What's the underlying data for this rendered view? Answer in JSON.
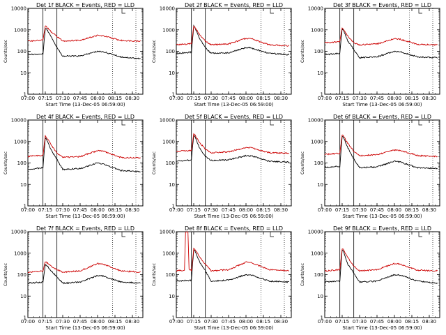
{
  "figure": {
    "start_time_label": "Start Time (13-Dec-05 06:59:00)",
    "ylabel": "Counts/sec",
    "xtick_labels": [
      "07:00",
      "07:15",
      "07:30",
      "07:45",
      "08:00",
      "08:15",
      "08:30"
    ],
    "ytick_labels": [
      "1",
      "10",
      "100",
      "1000",
      "10000"
    ],
    "colors": {
      "events": "#000000",
      "lld": "#cc0000"
    }
  },
  "chart_data": [
    {
      "type": "line",
      "title": "Det 1f  BLACK = Events, RED = LLD",
      "xlabel": "Start Time (13-Dec-05 06:59:00)",
      "ylabel": "Counts/sec",
      "yscale": "log",
      "ylim": [
        1,
        10000
      ],
      "xlim": [
        "07:00",
        "08:39"
      ],
      "series": [
        {
          "name": "Events",
          "color": "#000000",
          "x": [
            "07:00",
            "07:13",
            "07:15",
            "07:16",
            "07:20",
            "07:25",
            "07:30",
            "07:45",
            "08:00",
            "08:05",
            "08:20",
            "08:37"
          ],
          "y": [
            70,
            75,
            1200,
            1100,
            500,
            150,
            60,
            60,
            100,
            95,
            55,
            45
          ]
        },
        {
          "name": "LLD",
          "color": "#cc0000",
          "x": [
            "07:00",
            "07:13",
            "07:15",
            "07:16",
            "07:20",
            "07:25",
            "07:30",
            "07:45",
            "08:00",
            "08:05",
            "08:20",
            "08:37"
          ],
          "y": [
            300,
            330,
            1500,
            1400,
            800,
            500,
            300,
            330,
            550,
            520,
            320,
            300
          ]
        }
      ]
    },
    {
      "type": "line",
      "title": "Det 2f  BLACK = Events, RED = LLD",
      "xlabel": "Start Time (13-Dec-05 06:59:00)",
      "ylabel": "Counts/sec",
      "yscale": "log",
      "ylim": [
        1,
        10000
      ],
      "xlim": [
        "07:00",
        "08:39"
      ],
      "series": [
        {
          "name": "Events",
          "color": "#000000",
          "x": [
            "07:00",
            "07:13",
            "07:15",
            "07:16",
            "07:20",
            "07:25",
            "07:30",
            "07:45",
            "08:00",
            "08:05",
            "08:20",
            "08:37"
          ],
          "y": [
            80,
            90,
            1500,
            1300,
            400,
            150,
            80,
            85,
            150,
            140,
            80,
            70
          ]
        },
        {
          "name": "LLD",
          "color": "#cc0000",
          "x": [
            "07:00",
            "07:13",
            "07:15",
            "07:16",
            "07:20",
            "07:25",
            "07:30",
            "07:45",
            "08:00",
            "08:05",
            "08:20",
            "08:37"
          ],
          "y": [
            200,
            230,
            1400,
            1300,
            600,
            300,
            200,
            220,
            400,
            380,
            200,
            180
          ]
        }
      ]
    },
    {
      "type": "line",
      "title": "Det 3f  BLACK = Events, RED = LLD",
      "xlabel": "Start Time (13-Dec-05 06:59:00)",
      "ylabel": "Counts/sec",
      "yscale": "log",
      "ylim": [
        1,
        10000
      ],
      "xlim": [
        "07:00",
        "08:39"
      ],
      "series": [
        {
          "name": "Events",
          "color": "#000000",
          "x": [
            "07:00",
            "07:13",
            "07:15",
            "07:16",
            "07:20",
            "07:25",
            "07:30",
            "07:45",
            "08:00",
            "08:05",
            "08:20",
            "08:37"
          ],
          "y": [
            70,
            80,
            1100,
            1000,
            300,
            120,
            50,
            55,
            100,
            95,
            55,
            50
          ]
        },
        {
          "name": "LLD",
          "color": "#cc0000",
          "x": [
            "07:00",
            "07:13",
            "07:15",
            "07:16",
            "07:20",
            "07:25",
            "07:30",
            "07:45",
            "08:00",
            "08:05",
            "08:20",
            "08:37"
          ],
          "y": [
            250,
            280,
            1200,
            1100,
            500,
            250,
            200,
            220,
            380,
            360,
            210,
            200
          ]
        }
      ]
    },
    {
      "type": "line",
      "title": "Det 4f  BLACK = Events, RED = LLD",
      "xlabel": "Start Time (13-Dec-05 06:59:00)",
      "ylabel": "Counts/sec",
      "yscale": "log",
      "ylim": [
        1,
        10000
      ],
      "xlim": [
        "07:00",
        "08:39"
      ],
      "series": [
        {
          "name": "Events",
          "color": "#000000",
          "x": [
            "07:00",
            "07:13",
            "07:15",
            "07:16",
            "07:20",
            "07:25",
            "07:30",
            "07:45",
            "08:00",
            "08:05",
            "08:20",
            "08:37"
          ],
          "y": [
            50,
            60,
            1500,
            1300,
            400,
            150,
            50,
            55,
            100,
            90,
            45,
            40
          ]
        },
        {
          "name": "LLD",
          "color": "#cc0000",
          "x": [
            "07:00",
            "07:13",
            "07:15",
            "07:16",
            "07:20",
            "07:25",
            "07:30",
            "07:45",
            "08:00",
            "08:05",
            "08:20",
            "08:37"
          ],
          "y": [
            200,
            230,
            1800,
            1600,
            700,
            300,
            180,
            200,
            370,
            350,
            180,
            170
          ]
        }
      ]
    },
    {
      "type": "line",
      "title": "Det 5f  BLACK = Events, RED = LLD",
      "xlabel": "Start Time (13-Dec-05 06:59:00)",
      "ylabel": "Counts/sec",
      "yscale": "log",
      "ylim": [
        1,
        10000
      ],
      "xlim": [
        "07:00",
        "08:39"
      ],
      "series": [
        {
          "name": "Events",
          "color": "#000000",
          "x": [
            "07:00",
            "07:13",
            "07:15",
            "07:16",
            "07:20",
            "07:25",
            "07:30",
            "07:45",
            "08:00",
            "08:05",
            "08:20",
            "08:37"
          ],
          "y": [
            120,
            140,
            2000,
            1800,
            500,
            200,
            130,
            140,
            220,
            210,
            120,
            110
          ]
        },
        {
          "name": "LLD",
          "color": "#cc0000",
          "x": [
            "07:00",
            "07:13",
            "07:15",
            "07:16",
            "07:20",
            "07:25",
            "07:30",
            "07:45",
            "08:00",
            "08:05",
            "08:20",
            "08:37"
          ],
          "y": [
            350,
            380,
            2200,
            2000,
            900,
            450,
            300,
            330,
            520,
            500,
            300,
            280
          ]
        }
      ]
    },
    {
      "type": "line",
      "title": "Det 6f  BLACK = Events, RED = LLD",
      "xlabel": "Start Time (13-Dec-05 06:59:00)",
      "ylabel": "Counts/sec",
      "yscale": "log",
      "ylim": [
        1,
        10000
      ],
      "xlim": [
        "07:00",
        "08:39"
      ],
      "series": [
        {
          "name": "Events",
          "color": "#000000",
          "x": [
            "07:00",
            "07:13",
            "07:15",
            "07:16",
            "07:20",
            "07:25",
            "07:30",
            "07:45",
            "08:00",
            "08:05",
            "08:20",
            "08:37"
          ],
          "y": [
            60,
            70,
            1800,
            1600,
            500,
            150,
            60,
            65,
            120,
            110,
            60,
            55
          ]
        },
        {
          "name": "LLD",
          "color": "#cc0000",
          "x": [
            "07:00",
            "07:13",
            "07:15",
            "07:16",
            "07:20",
            "07:25",
            "07:30",
            "07:45",
            "08:00",
            "08:05",
            "08:20",
            "08:37"
          ],
          "y": [
            250,
            280,
            2000,
            1800,
            800,
            350,
            220,
            240,
            400,
            380,
            220,
            200
          ]
        }
      ]
    },
    {
      "type": "line",
      "title": "Det 7f  BLACK = Events, RED = LLD",
      "xlabel": "Start Time (13-Dec-05 06:59:00)",
      "ylabel": "Counts/sec",
      "yscale": "log",
      "ylim": [
        1,
        10000
      ],
      "xlim": [
        "07:00",
        "08:39"
      ],
      "series": [
        {
          "name": "Events",
          "color": "#000000",
          "x": [
            "07:00",
            "07:13",
            "07:15",
            "07:16",
            "07:20",
            "07:25",
            "07:30",
            "07:45",
            "08:00",
            "08:05",
            "08:20",
            "08:37"
          ],
          "y": [
            40,
            45,
            300,
            280,
            150,
            80,
            40,
            45,
            90,
            85,
            45,
            40
          ]
        },
        {
          "name": "LLD",
          "color": "#cc0000",
          "x": [
            "07:00",
            "07:13",
            "07:15",
            "07:16",
            "07:20",
            "07:25",
            "07:30",
            "07:45",
            "08:00",
            "08:05",
            "08:20",
            "08:37"
          ],
          "y": [
            130,
            150,
            400,
            380,
            250,
            170,
            130,
            150,
            330,
            310,
            150,
            130
          ]
        }
      ]
    },
    {
      "type": "line",
      "title": "Det 8f  BLACK = Events, RED = LLD",
      "xlabel": "Start Time (13-Dec-05 06:59:00)",
      "ylabel": "Counts/sec",
      "yscale": "log",
      "ylim": [
        1,
        10000
      ],
      "xlim": [
        "07:00",
        "08:39"
      ],
      "series": [
        {
          "name": "Events",
          "color": "#000000",
          "x": [
            "07:00",
            "07:13",
            "07:15",
            "07:16",
            "07:20",
            "07:25",
            "07:30",
            "07:45",
            "08:00",
            "08:05",
            "08:20",
            "08:37"
          ],
          "y": [
            50,
            55,
            1500,
            1300,
            400,
            150,
            50,
            55,
            100,
            95,
            50,
            45
          ]
        },
        {
          "name": "LLD",
          "color": "#cc0000",
          "x": [
            "07:00",
            "07:07",
            "07:08",
            "07:10",
            "07:11",
            "07:13",
            "07:15",
            "07:16",
            "07:20",
            "07:25",
            "07:30",
            "07:45",
            "08:00",
            "08:05",
            "08:20",
            "08:37"
          ],
          "y": [
            150,
            160,
            10000,
            10000,
            180,
            160,
            1600,
            1500,
            700,
            300,
            150,
            170,
            380,
            360,
            170,
            150
          ]
        }
      ]
    },
    {
      "type": "line",
      "title": "Det 9f  BLACK = Events, RED = LLD",
      "xlabel": "Start Time (13-Dec-05 06:59:00)",
      "ylabel": "Counts/sec",
      "yscale": "log",
      "ylim": [
        1,
        10000
      ],
      "xlim": [
        "07:00",
        "08:39"
      ],
      "series": [
        {
          "name": "Events",
          "color": "#000000",
          "x": [
            "07:00",
            "07:13",
            "07:15",
            "07:16",
            "07:20",
            "07:25",
            "07:30",
            "07:45",
            "08:00",
            "08:05",
            "08:20",
            "08:37"
          ],
          "y": [
            45,
            50,
            1500,
            1300,
            300,
            120,
            45,
            50,
            100,
            95,
            50,
            40
          ]
        },
        {
          "name": "LLD",
          "color": "#cc0000",
          "x": [
            "07:00",
            "07:13",
            "07:15",
            "07:16",
            "07:20",
            "07:25",
            "07:30",
            "07:45",
            "08:00",
            "08:05",
            "08:20",
            "08:37"
          ],
          "y": [
            150,
            170,
            1600,
            1500,
            600,
            250,
            150,
            170,
            330,
            310,
            160,
            150
          ]
        }
      ]
    }
  ]
}
